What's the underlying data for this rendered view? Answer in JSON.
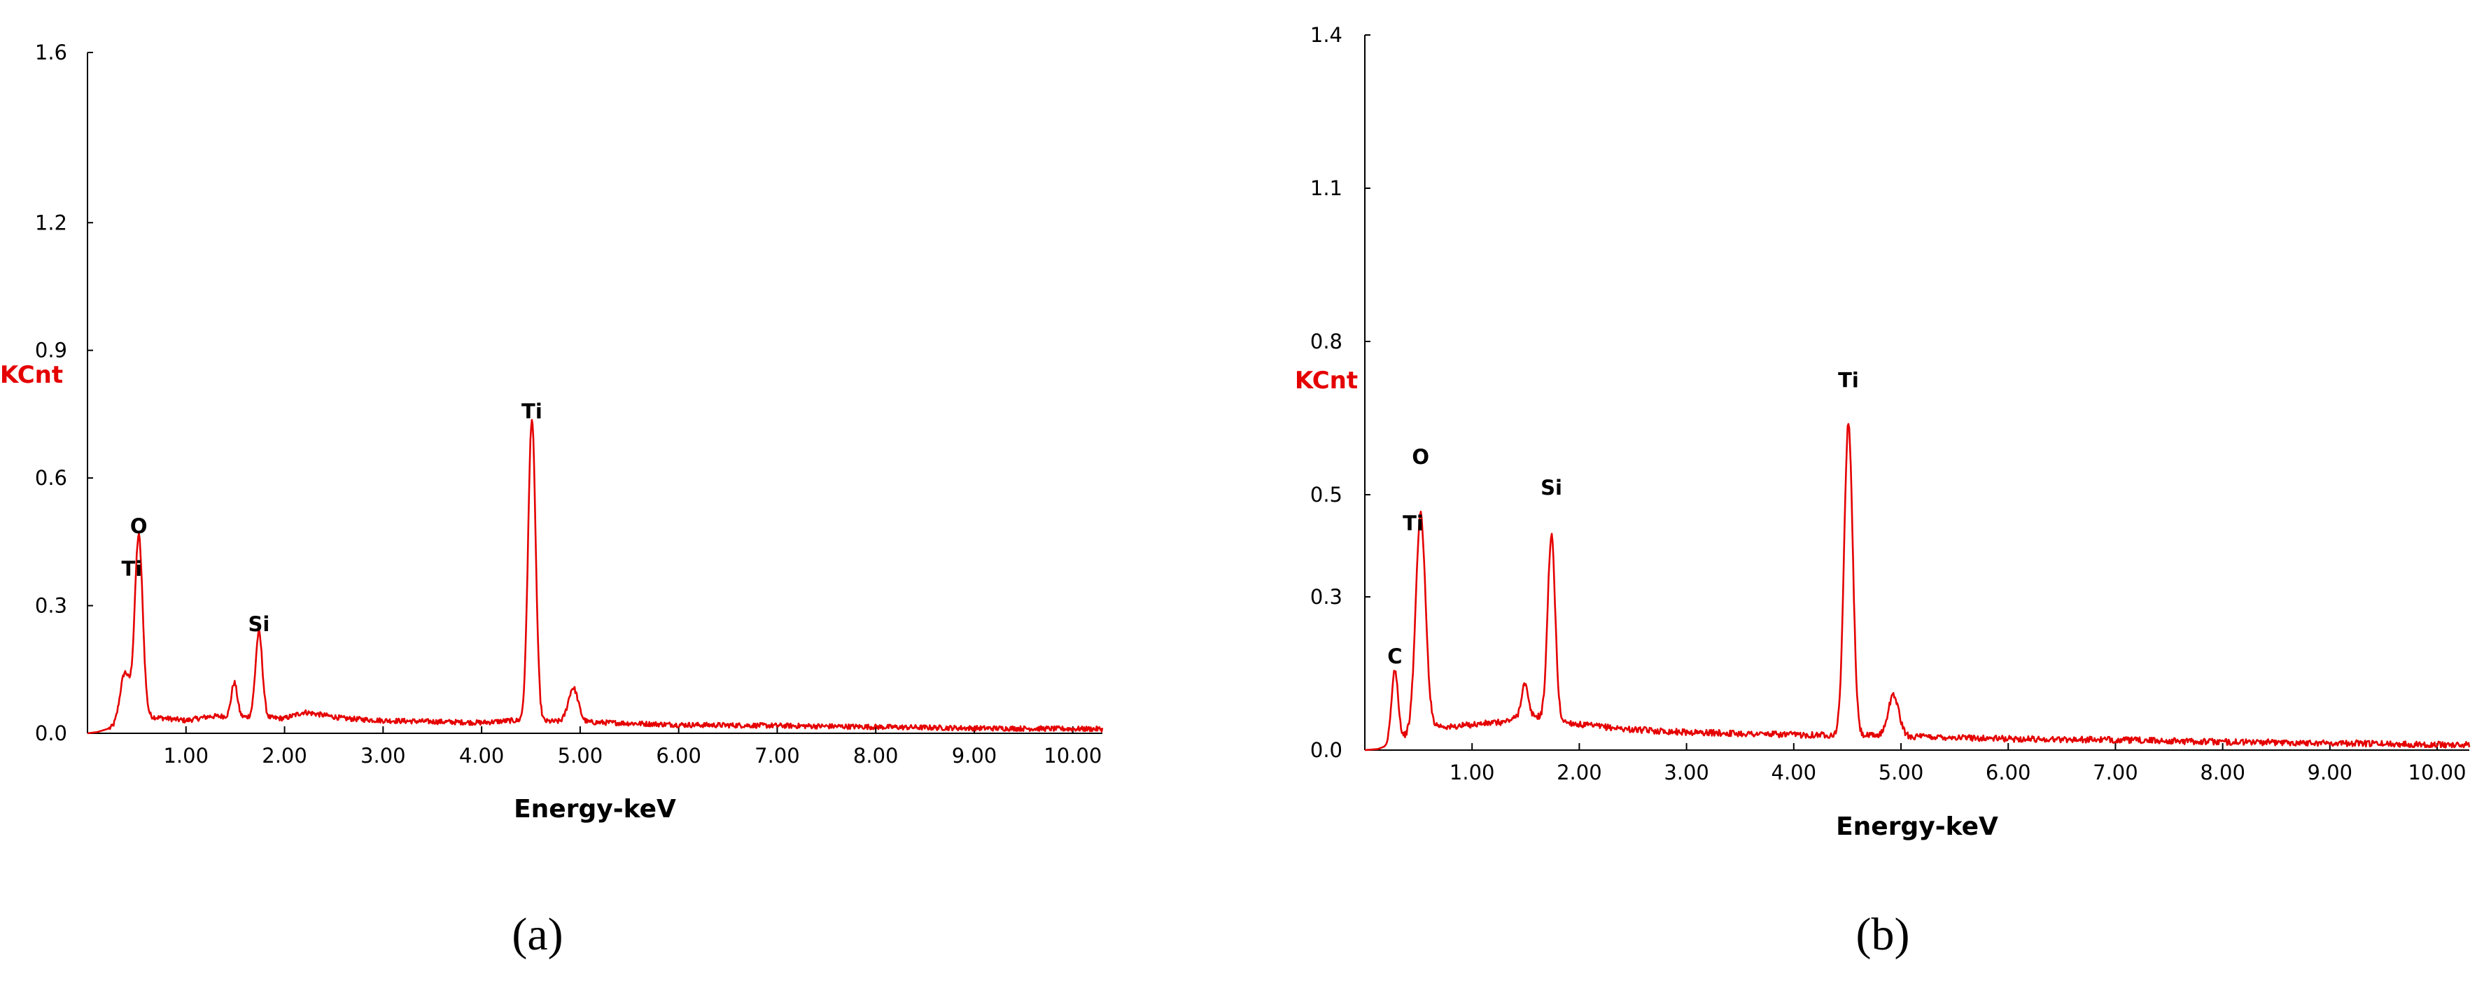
{
  "colors": {
    "spectrum": "#e50000",
    "ylabel": "#e50000",
    "axis": "#000000"
  },
  "chart_data": [
    {
      "type": "line",
      "panel_label": "(a)",
      "xlabel": "Energy-keV",
      "ylabel": "KCnt",
      "xlim": [
        0,
        10.3
      ],
      "ylim": [
        0,
        1.6
      ],
      "xticks": [
        1,
        2,
        3,
        4,
        5,
        6,
        7,
        8,
        9,
        10
      ],
      "xtick_labels": [
        "1.00",
        "2.00",
        "3.00",
        "4.00",
        "5.00",
        "6.00",
        "7.00",
        "8.00",
        "9.00",
        "10.00"
      ],
      "yticks": [
        0,
        0.3,
        0.6,
        0.9,
        1.2,
        1.6
      ],
      "ytick_labels": [
        "0.0",
        "0.3",
        "0.6",
        "0.9",
        "1.2",
        "1.6"
      ],
      "grid": false,
      "peak_labels": [
        {
          "text": "O",
          "x": 0.52,
          "y": 0.47
        },
        {
          "text": "Ti",
          "x": 0.45,
          "y": 0.37
        },
        {
          "text": "Si",
          "x": 1.74,
          "y": 0.24
        },
        {
          "text": "Ti",
          "x": 4.51,
          "y": 0.74
        }
      ],
      "series": [
        {
          "baseline": [
            [
              0,
              0
            ],
            [
              0.1,
              0.003
            ],
            [
              0.2,
              0.01
            ],
            [
              0.25,
              0.012
            ],
            [
              0.6,
              0.04
            ],
            [
              1.0,
              0.03
            ],
            [
              1.25,
              0.04
            ],
            [
              1.4,
              0.04
            ],
            [
              2.0,
              0.035
            ],
            [
              2.2,
              0.05
            ],
            [
              2.6,
              0.035
            ],
            [
              3.0,
              0.03
            ],
            [
              4.0,
              0.025
            ],
            [
              4.3,
              0.03
            ],
            [
              5.3,
              0.025
            ],
            [
              6.0,
              0.02
            ],
            [
              7.0,
              0.018
            ],
            [
              8.0,
              0.015
            ],
            [
              9.0,
              0.012
            ],
            [
              10.3,
              0.01
            ]
          ],
          "peaks": [
            {
              "center": 0.38,
              "height": 0.12,
              "width": 0.05
            },
            {
              "center": 0.52,
              "height": 0.43,
              "width": 0.04
            },
            {
              "center": 1.49,
              "height": 0.08,
              "width": 0.03
            },
            {
              "center": 1.74,
              "height": 0.2,
              "width": 0.035
            },
            {
              "center": 4.51,
              "height": 0.71,
              "width": 0.038
            },
            {
              "center": 4.93,
              "height": 0.08,
              "width": 0.05
            }
          ]
        }
      ]
    },
    {
      "type": "line",
      "panel_label": "(b)",
      "xlabel": "Energy-keV",
      "ylabel": "KCnt",
      "xlim": [
        0,
        10.3
      ],
      "ylim": [
        0,
        1.4
      ],
      "xticks": [
        1,
        2,
        3,
        4,
        5,
        6,
        7,
        8,
        9,
        10
      ],
      "xtick_labels": [
        "1.00",
        "2.00",
        "3.00",
        "4.00",
        "5.00",
        "6.00",
        "7.00",
        "8.00",
        "9.00",
        "10.00"
      ],
      "yticks": [
        0,
        0.3,
        0.5,
        0.8,
        1.1,
        1.4
      ],
      "ytick_labels": [
        "0.0",
        "0.3",
        "0.5",
        "0.8",
        "1.1",
        "1.4"
      ],
      "grid": false,
      "peak_labels": [
        {
          "text": "C",
          "x": 0.28,
          "y": 0.17
        },
        {
          "text": "O",
          "x": 0.52,
          "y": 0.56
        },
        {
          "text": "Ti",
          "x": 0.45,
          "y": 0.43
        },
        {
          "text": "Si",
          "x": 1.74,
          "y": 0.5
        },
        {
          "text": "Ti",
          "x": 4.51,
          "y": 0.71
        }
      ],
      "series": [
        {
          "baseline": [
            [
              0,
              0
            ],
            [
              0.12,
              0.002
            ],
            [
              0.2,
              0.008
            ],
            [
              0.25,
              0.015
            ],
            [
              0.6,
              0.05
            ],
            [
              0.8,
              0.045
            ],
            [
              1.0,
              0.05
            ],
            [
              1.3,
              0.055
            ],
            [
              1.5,
              0.07
            ],
            [
              2.0,
              0.05
            ],
            [
              2.5,
              0.04
            ],
            [
              3.0,
              0.035
            ],
            [
              4.0,
              0.03
            ],
            [
              4.3,
              0.03
            ],
            [
              5.5,
              0.025
            ],
            [
              6.0,
              0.022
            ],
            [
              7.0,
              0.02
            ],
            [
              8.0,
              0.016
            ],
            [
              9.0,
              0.014
            ],
            [
              10.3,
              0.01
            ]
          ],
          "peaks": [
            {
              "center": 0.28,
              "height": 0.14,
              "width": 0.03
            },
            {
              "center": 0.52,
              "height": 0.42,
              "width": 0.045
            },
            {
              "center": 1.49,
              "height": 0.06,
              "width": 0.03
            },
            {
              "center": 1.74,
              "height": 0.36,
              "width": 0.035
            },
            {
              "center": 4.51,
              "height": 0.61,
              "width": 0.04
            },
            {
              "center": 4.93,
              "height": 0.08,
              "width": 0.05
            }
          ]
        }
      ]
    }
  ]
}
